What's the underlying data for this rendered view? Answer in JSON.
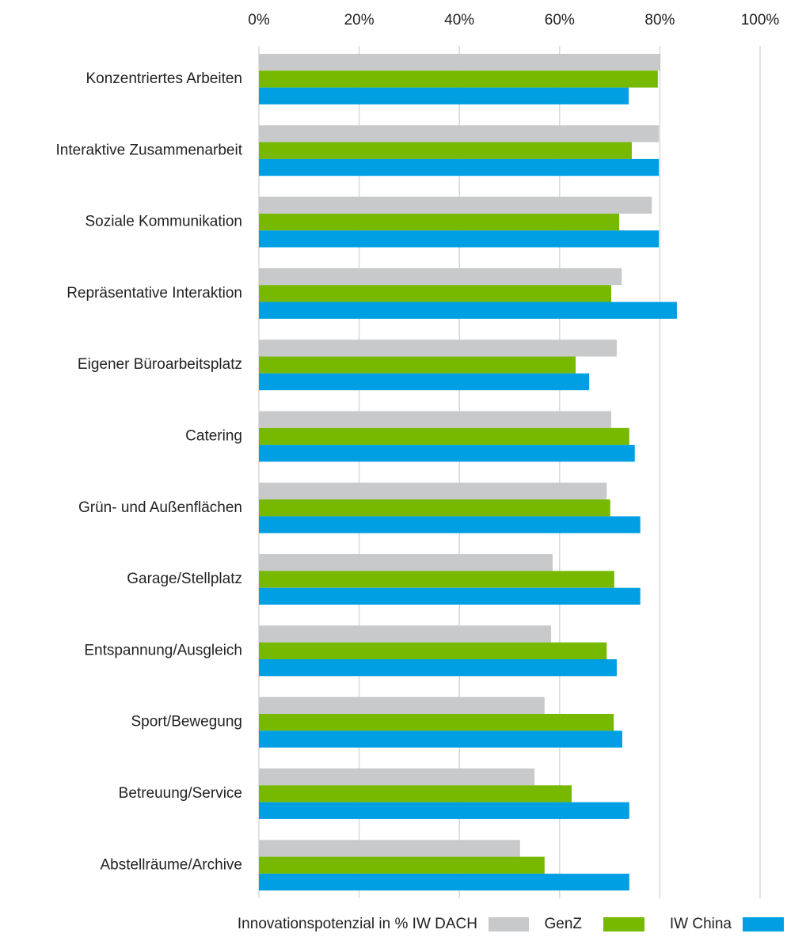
{
  "chart_data": {
    "type": "hbar",
    "xlabel": "Innovationspotenzial in %",
    "categories": [
      "Konzentriertes Arbeiten",
      "Interaktive Zusammenarbeit",
      "Soziale Kommunikation",
      "Repräsentative Interaktion",
      "Eigener Büroarbeitsplatz",
      "Catering",
      "Grün- und Außenflächen",
      "Garage/Stellplatz",
      "Entspannung/Ausgleich",
      "Sport/Bewegung",
      "Betreuung/Service",
      "Abstellräume/Archive"
    ],
    "series": [
      {
        "name": "IW DACH",
        "color": "#c8c9cb",
        "values": [
          80.1,
          79.8,
          78.4,
          72.4,
          71.4,
          70.3,
          69.4,
          58.6,
          58.3,
          57.0,
          55.0,
          52.1
        ]
      },
      {
        "name": "GenZ",
        "color": "#76b900",
        "values": [
          79.6,
          74.4,
          71.9,
          70.3,
          63.2,
          73.9,
          70.1,
          70.9,
          69.4,
          70.8,
          62.4,
          57.0
        ]
      },
      {
        "name": "IW China",
        "color": "#009fe3",
        "values": [
          73.8,
          79.8,
          79.8,
          83.4,
          65.9,
          75.0,
          76.1,
          76.1,
          71.4,
          72.5,
          73.9,
          73.9
        ]
      }
    ],
    "xlim": [
      0,
      100
    ],
    "xticks": [
      {
        "value": 0,
        "label": "0%"
      },
      {
        "value": 20,
        "label": "20%"
      },
      {
        "value": 40,
        "label": "40%"
      },
      {
        "value": 60,
        "label": "60%"
      },
      {
        "value": 80,
        "label": "80%"
      },
      {
        "value": 100,
        "label": "100%"
      }
    ],
    "grid": true
  }
}
